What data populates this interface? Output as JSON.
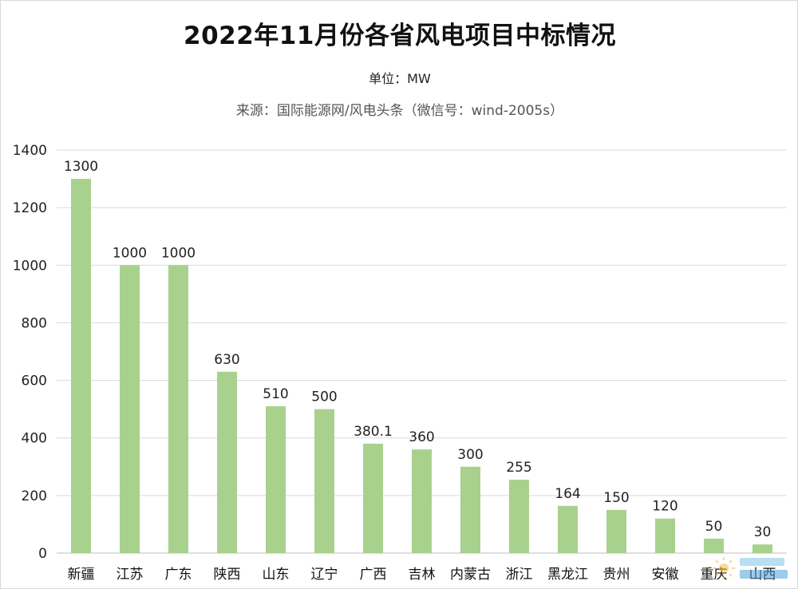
{
  "header": {
    "title": "2022年11月份各省风电项目中标情况",
    "unit": "单位：MW",
    "source": "来源：国际能源网/风电头条（微信号：wind-2005s）"
  },
  "chart_data": {
    "type": "bar",
    "title": "2022年11月份各省风电项目中标情况",
    "subtitle": "单位：MW",
    "xlabel": "",
    "ylabel": "",
    "categories": [
      "新疆",
      "江苏",
      "广东",
      "陕西",
      "山东",
      "辽宁",
      "广西",
      "吉林",
      "内蒙古",
      "浙江",
      "黑龙江",
      "贵州",
      "安徽",
      "重庆",
      "山西"
    ],
    "values": [
      1300,
      1000,
      1000,
      630,
      510,
      500,
      380.1,
      360,
      300,
      255,
      164,
      150,
      120,
      50,
      30
    ],
    "data_labels": [
      "1300",
      "1000",
      "1000",
      "630",
      "510",
      "500",
      "380.1",
      "360",
      "300",
      "255",
      "164",
      "150",
      "120",
      "50",
      "30"
    ],
    "ylim": [
      0,
      1400
    ],
    "yticks": [
      0,
      200,
      400,
      600,
      800,
      1000,
      1200,
      1400
    ],
    "grid": true,
    "legend": "none",
    "colors": {
      "bar": "#a9d18e",
      "grid": "#d9d9d9",
      "axis": "#bfbfbf"
    }
  }
}
